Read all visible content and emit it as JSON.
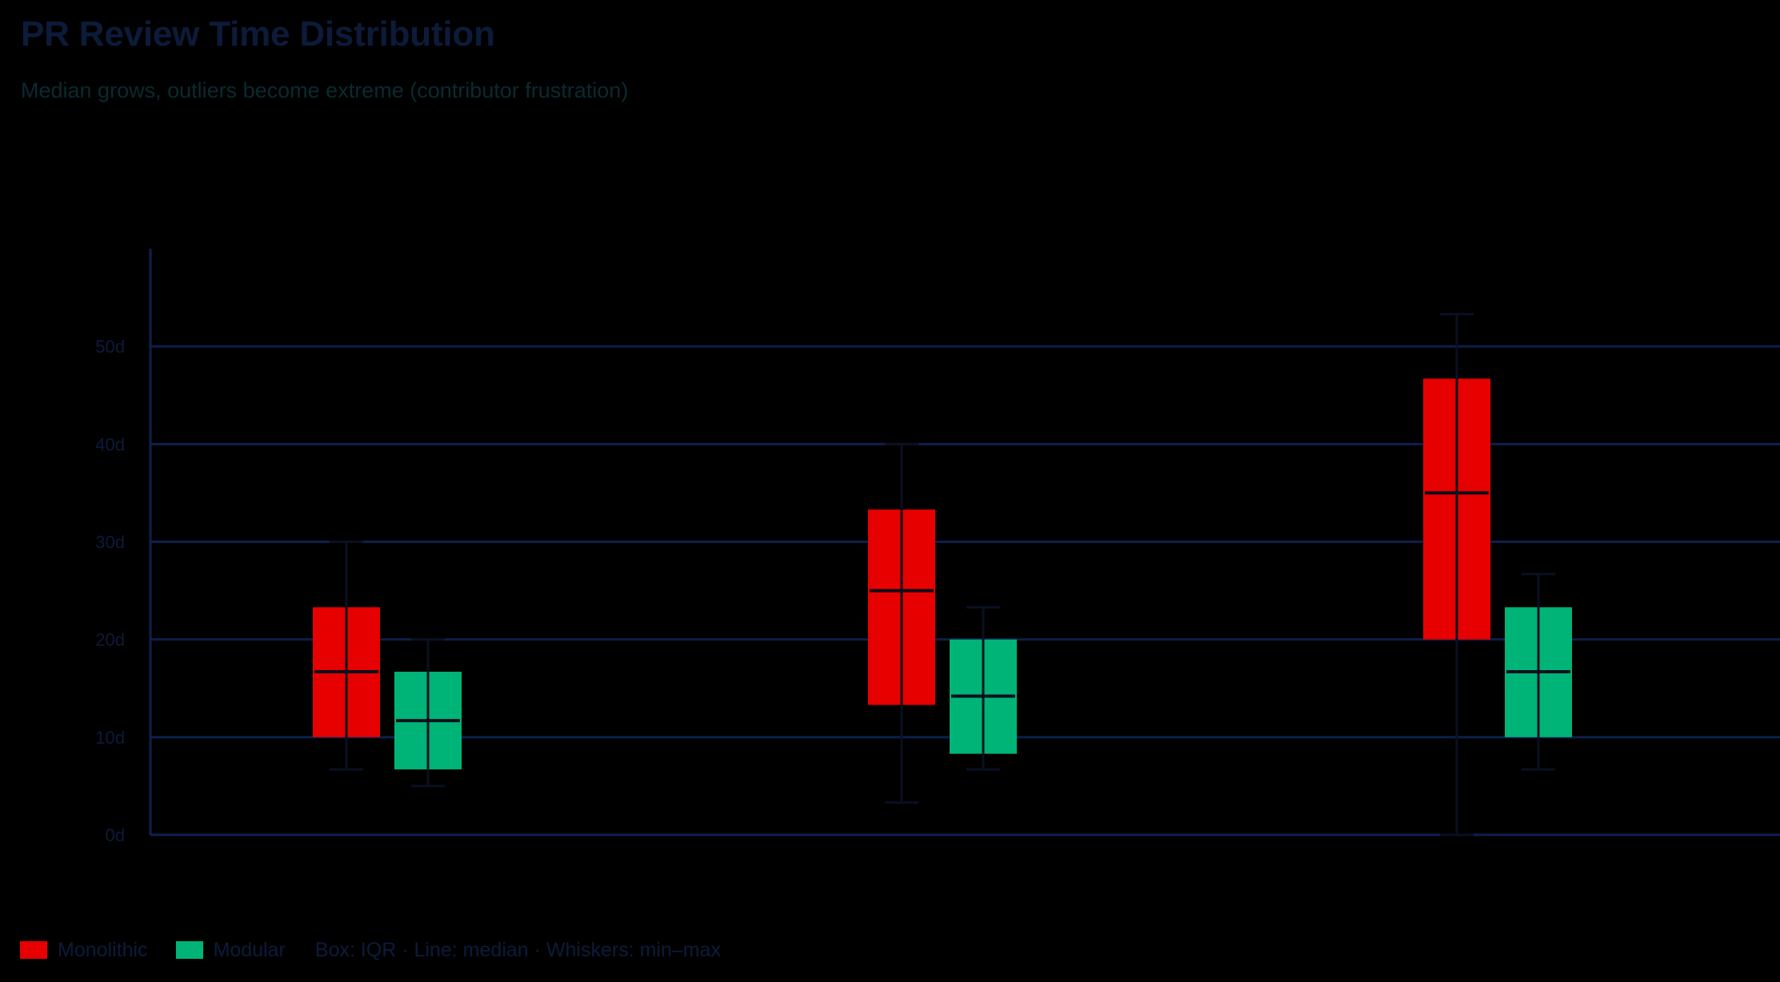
{
  "header": {
    "title": "PR Review Time Distribution",
    "subtitle": "Median grows, outliers become extreme (contributor frustration)"
  },
  "legend": {
    "items": [
      {
        "label": "Monolithic",
        "color": "#e60000"
      },
      {
        "label": "Modular",
        "color": "#00b377"
      }
    ],
    "note": "Box: IQR · Line: median · Whiskers: min–max"
  },
  "colors": {
    "monolithic": "#e60000",
    "modular": "#00b377",
    "gridline": "#0d1f4d",
    "axis": "#0f2050",
    "whisker": "#0a1020",
    "median": "#0b0f1c",
    "text": "#0d1b3a"
  },
  "chart_data": {
    "type": "box",
    "title": "PR Review Time Distribution",
    "subtitle": "Median grows, outliers become extreme (contributor frustration)",
    "xlabel": "",
    "ylabel": "",
    "categories": [
      "",
      "",
      ""
    ],
    "y_ticks": [
      "0d",
      "10d",
      "20d",
      "30d",
      "40d",
      "50d"
    ],
    "y_tick_values": [
      0,
      10,
      20,
      30,
      40,
      50
    ],
    "ylim": [
      0,
      60
    ],
    "grid": true,
    "legend_position": "bottom-left",
    "series": [
      {
        "name": "Monolithic",
        "color": "#e60000",
        "boxes": [
          {
            "min": 6.7,
            "q1": 10.0,
            "median": 16.7,
            "q3": 23.3,
            "max": 30.0
          },
          {
            "min": 3.3,
            "q1": 13.3,
            "median": 25.0,
            "q3": 33.3,
            "max": 40.0
          },
          {
            "min": 0.0,
            "q1": 20.0,
            "median": 35.0,
            "q3": 46.7,
            "max": 53.3
          }
        ]
      },
      {
        "name": "Modular",
        "color": "#00b377",
        "boxes": [
          {
            "min": 5.0,
            "q1": 6.7,
            "median": 11.7,
            "q3": 16.7,
            "max": 20.0
          },
          {
            "min": 6.7,
            "q1": 8.3,
            "median": 14.2,
            "q3": 20.0,
            "max": 23.3
          },
          {
            "min": 6.7,
            "q1": 10.0,
            "median": 16.7,
            "q3": 23.3,
            "max": 26.7
          }
        ]
      }
    ]
  }
}
